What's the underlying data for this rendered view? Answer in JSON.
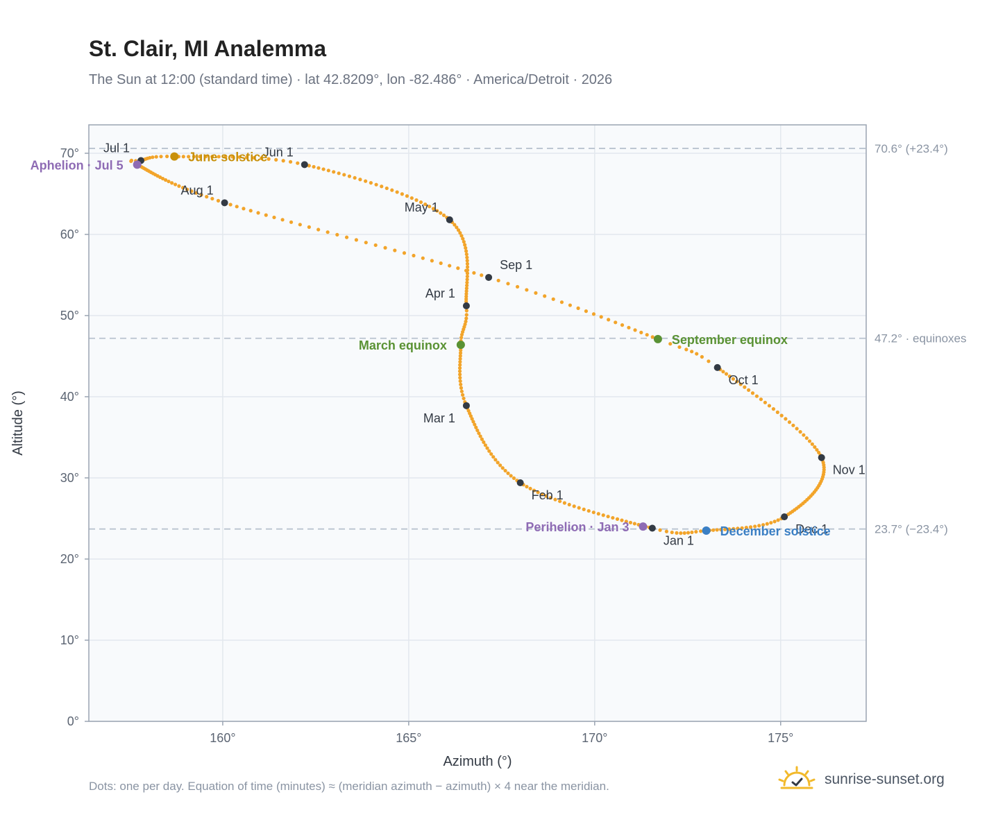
{
  "title": "St. Clair, MI Analemma",
  "subtitle": "The Sun at 12:00 (standard time) · lat 42.8209°, lon -82.486° · America/Detroit · 2026",
  "footnote": "Dots: one per day. Equation of time (minutes) ≈ (meridian azimuth − azimuth) × 4 near the meridian.",
  "brand": {
    "name": "sunrise-sunset.org",
    "icon": "sun-logo-icon"
  },
  "colors": {
    "path": "#f2a42a",
    "month_marker": "#333a44",
    "june_solstice": "#c8900a",
    "december_solstice": "#3b7fc4",
    "equinox": "#5a9234",
    "apsis": "#8e6bb4",
    "plot_bg": "#f8fafc",
    "grid": "#e3e8ee",
    "axis": "#9aa4b2",
    "reference_line": "#b9c3cf"
  },
  "chart_data": {
    "type": "scatter",
    "xlabel": "Azimuth (°)",
    "ylabel": "Altitude (°)",
    "xlim": [
      156.4,
      177.3
    ],
    "ylim": [
      0,
      73.5
    ],
    "x_ticks": [
      {
        "value": 160,
        "label": "160°"
      },
      {
        "value": 165,
        "label": "165°"
      },
      {
        "value": 170,
        "label": "170°"
      },
      {
        "value": 175,
        "label": "175°"
      }
    ],
    "y_ticks": [
      {
        "value": 0,
        "label": "0°"
      },
      {
        "value": 10,
        "label": "10°"
      },
      {
        "value": 20,
        "label": "20°"
      },
      {
        "value": 30,
        "label": "30°"
      },
      {
        "value": 40,
        "label": "40°"
      },
      {
        "value": 50,
        "label": "50°"
      },
      {
        "value": 60,
        "label": "60°"
      },
      {
        "value": 70,
        "label": "70°"
      }
    ],
    "grid": true,
    "reference_lines": [
      {
        "y": 70.6,
        "label": "70.6° (+23.4°)"
      },
      {
        "y": 47.2,
        "label": "47.2° · equinoxes"
      },
      {
        "y": 23.7,
        "label": "23.7° (−23.4°)"
      }
    ],
    "path_knots": [
      {
        "day": 0,
        "x": 171.55,
        "y": 23.8
      },
      {
        "day": 31,
        "x": 168.0,
        "y": 29.4
      },
      {
        "day": 59,
        "x": 166.55,
        "y": 38.9
      },
      {
        "day": 78,
        "x": 166.4,
        "y": 46.4
      },
      {
        "day": 90,
        "x": 166.55,
        "y": 51.2
      },
      {
        "day": 120,
        "x": 166.1,
        "y": 61.8
      },
      {
        "day": 151,
        "x": 162.2,
        "y": 68.6
      },
      {
        "day": 171,
        "x": 158.7,
        "y": 69.6
      },
      {
        "day": 181,
        "x": 157.8,
        "y": 69.1
      },
      {
        "day": 185,
        "x": 157.7,
        "y": 68.6
      },
      {
        "day": 212,
        "x": 160.05,
        "y": 63.9
      },
      {
        "day": 243,
        "x": 167.15,
        "y": 54.7
      },
      {
        "day": 265,
        "x": 171.7,
        "y": 47.1
      },
      {
        "day": 273,
        "x": 173.3,
        "y": 43.6
      },
      {
        "day": 304,
        "x": 176.1,
        "y": 32.5
      },
      {
        "day": 334,
        "x": 175.1,
        "y": 25.2
      },
      {
        "day": 354,
        "x": 173.0,
        "y": 23.5
      },
      {
        "day": 365,
        "x": 171.55,
        "y": 23.8
      }
    ],
    "month_markers": [
      {
        "label": "Jan 1",
        "x": 171.55,
        "y": 23.8,
        "pos": "below-right"
      },
      {
        "label": "Feb 1",
        "x": 168.0,
        "y": 29.4,
        "pos": "below-right"
      },
      {
        "label": "Mar 1",
        "x": 166.55,
        "y": 38.9,
        "pos": "below-left"
      },
      {
        "label": "Apr 1",
        "x": 166.55,
        "y": 51.2,
        "pos": "above-left"
      },
      {
        "label": "May 1",
        "x": 166.1,
        "y": 61.8,
        "pos": "above-left"
      },
      {
        "label": "Jun 1",
        "x": 162.2,
        "y": 68.6,
        "pos": "above-left"
      },
      {
        "label": "Jul 1",
        "x": 157.8,
        "y": 69.1,
        "pos": "above-left"
      },
      {
        "label": "Aug 1",
        "x": 160.05,
        "y": 63.9,
        "pos": "above-left"
      },
      {
        "label": "Sep 1",
        "x": 167.15,
        "y": 54.7,
        "pos": "above-right"
      },
      {
        "label": "Oct 1",
        "x": 173.3,
        "y": 43.6,
        "pos": "below-right"
      },
      {
        "label": "Nov 1",
        "x": 176.1,
        "y": 32.5,
        "pos": "below-right"
      },
      {
        "label": "Dec 1",
        "x": 175.1,
        "y": 25.2,
        "pos": "below-right"
      }
    ],
    "events": [
      {
        "label": "June solstice",
        "x": 158.7,
        "y": 69.6,
        "color_key": "june_solstice",
        "side": "right"
      },
      {
        "label": "December solstice",
        "x": 173.0,
        "y": 23.5,
        "color_key": "december_solstice",
        "side": "right"
      },
      {
        "label": "March equinox",
        "x": 166.4,
        "y": 46.4,
        "color_key": "equinox",
        "side": "left"
      },
      {
        "label": "September equinox",
        "x": 171.7,
        "y": 47.1,
        "color_key": "equinox",
        "side": "right"
      },
      {
        "label": "Aphelion · Jul 5",
        "x": 157.7,
        "y": 68.6,
        "color_key": "apsis",
        "side": "left"
      },
      {
        "label": "Perihelion · Jan 3",
        "x": 171.3,
        "y": 24.0,
        "color_key": "apsis",
        "side": "left"
      }
    ]
  }
}
